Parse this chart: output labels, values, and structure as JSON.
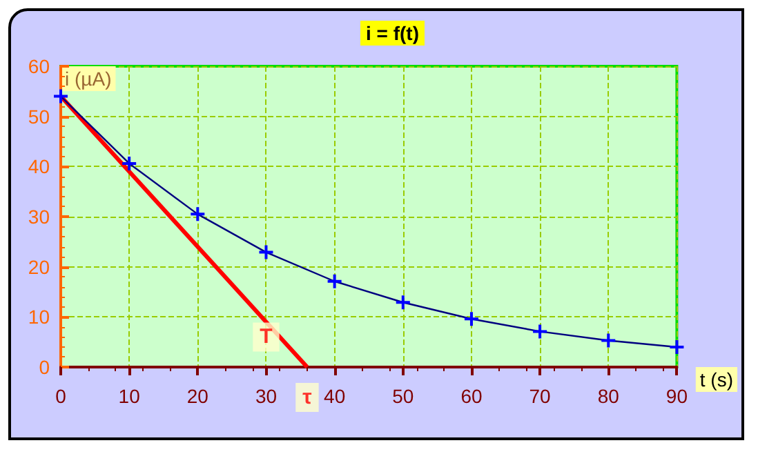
{
  "chart_data": {
    "type": "line",
    "title": "i = f(t)",
    "xlabel": "t (s)",
    "ylabel": "i (µA)",
    "x": [
      0,
      10,
      20,
      30,
      40,
      50,
      60,
      70,
      80,
      90
    ],
    "series": [
      {
        "color": "#000080",
        "marker": "cross",
        "values": [
          54,
          40.6,
          30.5,
          22.9,
          17.1,
          12.9,
          9.6,
          7.1,
          5.3,
          4.0
        ]
      },
      {
        "color": "#ff0000",
        "marker": "none",
        "x": [
          0,
          36
        ],
        "values": [
          54,
          0
        ]
      }
    ],
    "annotations": [
      {
        "text": "T",
        "x": 30,
        "y": 6
      },
      {
        "text": "τ",
        "x": 36,
        "y": 0
      }
    ],
    "xlim": [
      0,
      90
    ],
    "xticks": [
      0,
      10,
      20,
      30,
      40,
      50,
      60,
      70,
      80,
      90
    ],
    "ylim": [
      0,
      60
    ],
    "yticks": [
      0,
      10,
      20,
      30,
      40,
      50,
      60
    ],
    "grid": true
  }
}
